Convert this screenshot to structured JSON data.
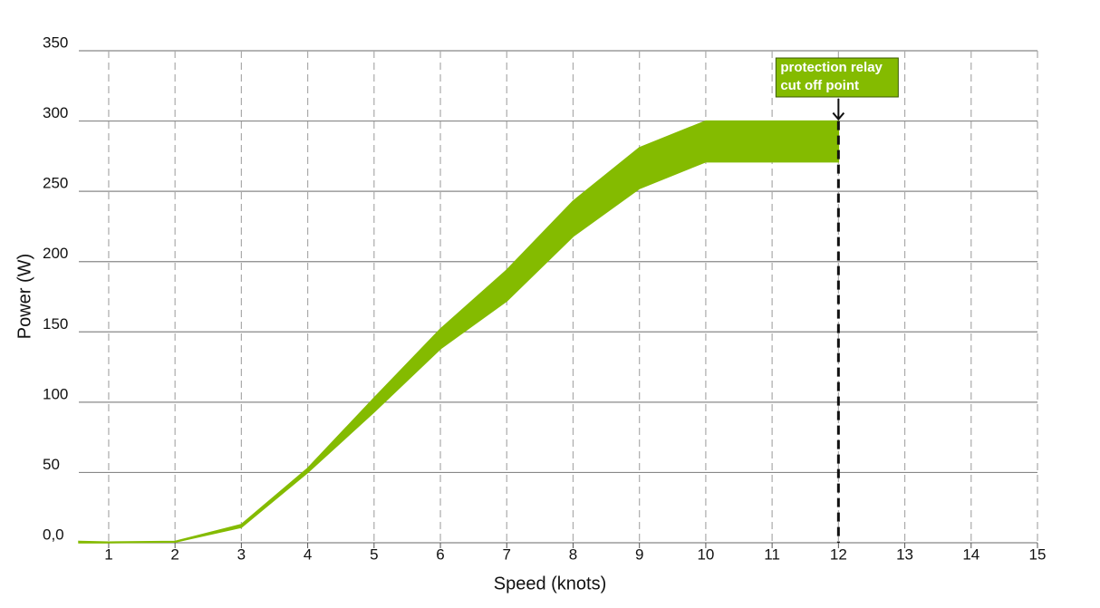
{
  "chart_data": {
    "type": "band",
    "x_label": "Speed (knots)",
    "y_label": "Power (W)",
    "x": [
      0.55,
      1,
      2,
      3,
      4,
      5,
      6,
      7,
      8,
      9,
      10,
      12
    ],
    "high": [
      1,
      0.5,
      1,
      13,
      53,
      103,
      152,
      194,
      243,
      281,
      300,
      300
    ],
    "low": [
      0,
      0,
      0.5,
      11,
      50,
      93,
      138,
      172,
      218,
      252,
      271,
      271
    ],
    "color": "#84bb00",
    "xlim": [
      0.55,
      15
    ],
    "ylim": [
      0,
      350
    ],
    "xticks": [
      1,
      2,
      3,
      4,
      5,
      6,
      7,
      8,
      9,
      10,
      11,
      12,
      13,
      14,
      15
    ],
    "yticks": [
      {
        "value": 0,
        "label": "0,0"
      },
      50,
      100,
      150,
      200,
      250,
      300,
      350
    ],
    "grid": true,
    "annotation": {
      "x": 12,
      "y": 300,
      "lines": [
        "protection relay",
        "cut off point"
      ]
    }
  }
}
